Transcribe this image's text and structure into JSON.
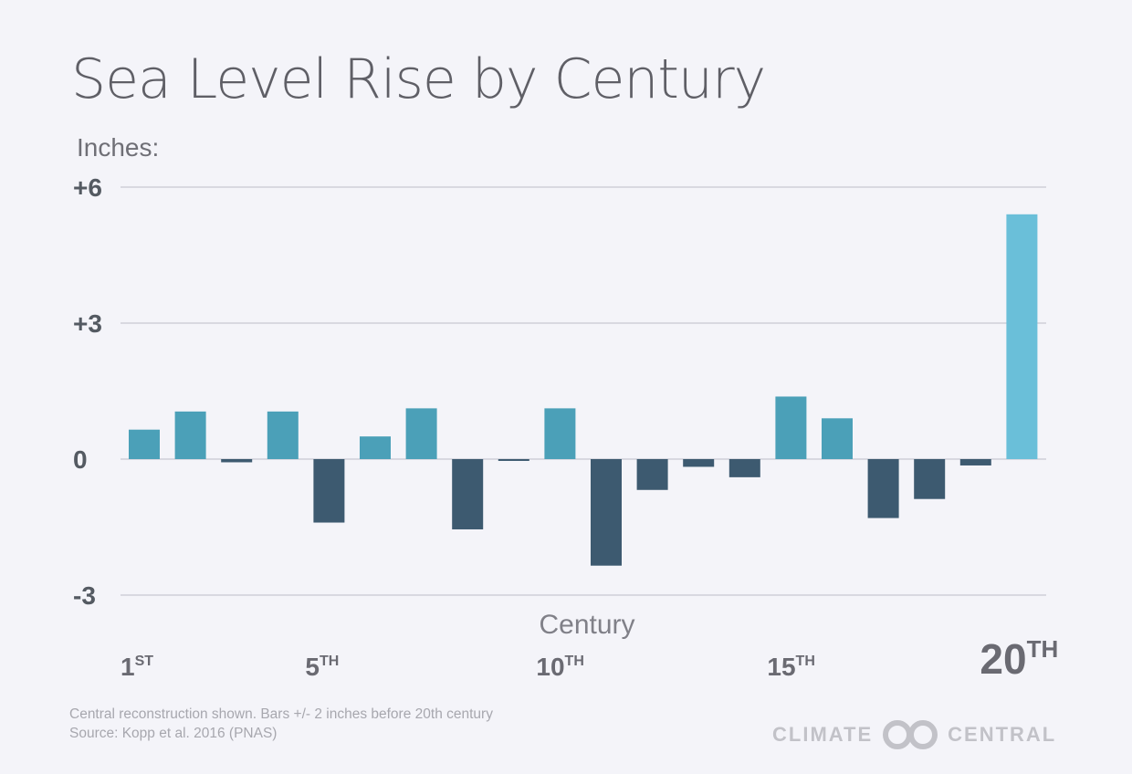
{
  "chart_data": {
    "type": "bar",
    "title": "Sea Level Rise by Century",
    "ylabel": "Inches:",
    "xlabel": "Century",
    "ylim": [
      -3,
      6
    ],
    "yticks": [
      {
        "value": 6,
        "label": "+6"
      },
      {
        "value": 3,
        "label": "+3"
      },
      {
        "value": 0,
        "label": "0"
      },
      {
        "value": -3,
        "label": "-3"
      }
    ],
    "x_tick_labels": [
      {
        "century": 1,
        "num": "1",
        "suffix": "ST"
      },
      {
        "century": 5,
        "num": "5",
        "suffix": "TH"
      },
      {
        "century": 10,
        "num": "10",
        "suffix": "TH"
      },
      {
        "century": 15,
        "num": "15",
        "suffix": "TH"
      },
      {
        "century": 20,
        "num": "20",
        "suffix": "TH",
        "emphasis": true
      }
    ],
    "x": [
      1,
      2,
      3,
      4,
      5,
      6,
      7,
      8,
      9,
      10,
      11,
      12,
      13,
      14,
      15,
      16,
      17,
      18,
      19,
      20
    ],
    "values": [
      0.65,
      1.05,
      -0.07,
      1.05,
      -1.4,
      0.5,
      1.12,
      -1.55,
      -0.04,
      1.12,
      -2.35,
      -0.68,
      -0.17,
      -0.4,
      1.38,
      0.9,
      -1.3,
      -0.88,
      -0.14,
      5.4
    ],
    "grid": true,
    "colors": {
      "positive": "#4ba0b8",
      "negative": "#3d5a70",
      "highlight": "#6abfd9",
      "grid": "#c8c8d2"
    }
  },
  "footnote": {
    "line1": "Central reconstruction shown. Bars +/- 2 inches before 20th century",
    "line2": "Source: Kopp et al. 2016 (PNAS)"
  },
  "logo": {
    "left": "CLIMATE",
    "right": "CENTRAL"
  }
}
